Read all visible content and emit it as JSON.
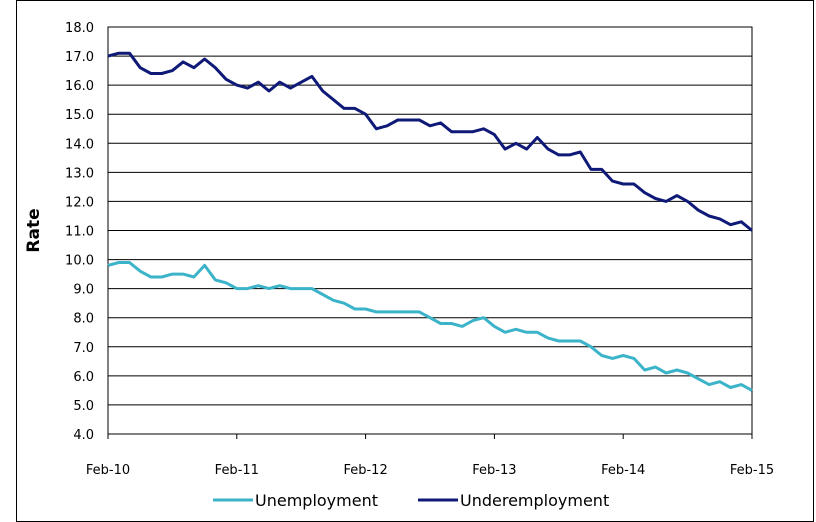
{
  "chart_data": {
    "type": "line",
    "title": "",
    "xlabel": "",
    "ylabel": "Rate",
    "ylim": [
      4.0,
      18.0
    ],
    "yticks": [
      "4.0",
      "5.0",
      "6.0",
      "7.0",
      "8.0",
      "9.0",
      "10.0",
      "11.0",
      "12.0",
      "13.0",
      "14.0",
      "15.0",
      "16.0",
      "17.0",
      "18.0"
    ],
    "xticks": [
      "Feb-10",
      "Feb-11",
      "Feb-12",
      "Feb-13",
      "Feb-14",
      "Feb-15"
    ],
    "grid": true,
    "legend": "bottom",
    "series": [
      {
        "name": "Unemployment",
        "color": "#3bb3c9",
        "values": [
          9.8,
          9.9,
          9.9,
          9.6,
          9.4,
          9.4,
          9.5,
          9.5,
          9.4,
          9.8,
          9.3,
          9.2,
          9.0,
          9.0,
          9.1,
          9.0,
          9.1,
          9.0,
          9.0,
          9.0,
          8.8,
          8.6,
          8.5,
          8.3,
          8.3,
          8.2,
          8.2,
          8.2,
          8.2,
          8.2,
          8.0,
          7.8,
          7.8,
          7.7,
          7.9,
          8.0,
          7.7,
          7.5,
          7.6,
          7.5,
          7.5,
          7.3,
          7.2,
          7.2,
          7.2,
          7.0,
          6.7,
          6.6,
          6.7,
          6.6,
          6.2,
          6.3,
          6.1,
          6.2,
          6.1,
          5.9,
          5.7,
          5.8,
          5.6,
          5.7,
          5.5
        ]
      },
      {
        "name": "Underemployment",
        "color": "#0f1a78",
        "values": [
          17.0,
          17.1,
          17.1,
          16.6,
          16.4,
          16.4,
          16.5,
          16.8,
          16.6,
          16.9,
          16.6,
          16.2,
          16.0,
          15.9,
          16.1,
          15.8,
          16.1,
          15.9,
          16.1,
          16.3,
          15.8,
          15.5,
          15.2,
          15.2,
          15.0,
          14.5,
          14.6,
          14.8,
          14.8,
          14.8,
          14.6,
          14.7,
          14.4,
          14.4,
          14.4,
          14.5,
          14.3,
          13.8,
          14.0,
          13.8,
          14.2,
          13.8,
          13.6,
          13.6,
          13.7,
          13.1,
          13.1,
          12.7,
          12.6,
          12.6,
          12.3,
          12.1,
          12.0,
          12.2,
          12.0,
          11.7,
          11.5,
          11.4,
          11.2,
          11.3,
          11.0
        ]
      }
    ]
  }
}
